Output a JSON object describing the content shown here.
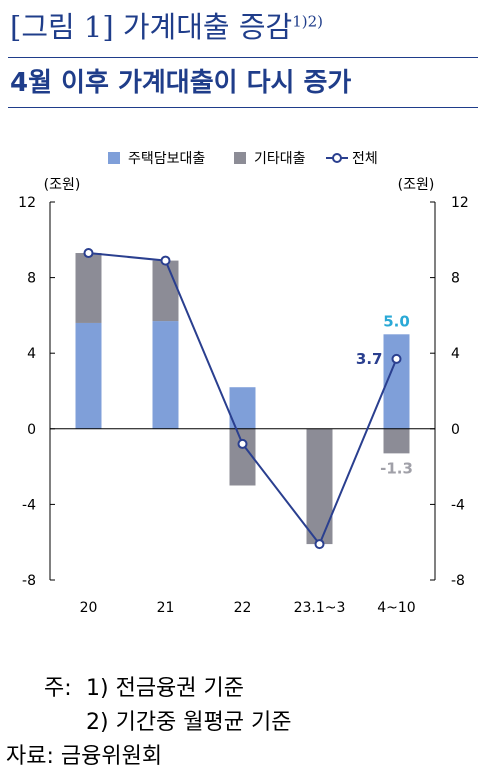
{
  "header": {
    "figure_title": "[그림 1] 가계대출 증감",
    "figure_title_sup": "1)2)",
    "subtitle": "4월 이후 가계대출이 다시 증가"
  },
  "chart_data": {
    "type": "bar",
    "categories": [
      "20",
      "21",
      "22",
      "23.1~3",
      "4~10"
    ],
    "series": [
      {
        "name": "주택담보대출",
        "kind": "bar",
        "stack": "s",
        "color": "#7f9fd9",
        "values": [
          5.6,
          5.7,
          2.2,
          0.0,
          5.0
        ]
      },
      {
        "name": "기타대출",
        "kind": "bar",
        "stack": "s",
        "color": "#8c8c96",
        "values": [
          3.7,
          3.2,
          -3.0,
          -6.1,
          -1.3
        ]
      },
      {
        "name": "전체",
        "kind": "line",
        "color": "#2a3f8f",
        "values": [
          9.3,
          8.9,
          -0.8,
          -6.1,
          3.7
        ]
      }
    ],
    "ylim": [
      -8,
      12
    ],
    "yticks": [
      -8,
      -4,
      0,
      4,
      8,
      12
    ],
    "y_unit_left": "(조원)",
    "y_unit_right": "(조원)",
    "legend_position": "top",
    "data_labels": [
      {
        "text": "5.0",
        "category_index": 4,
        "value": 5.0,
        "color": "#2aa9d6",
        "anchor": "above-bar"
      },
      {
        "text": "-1.3",
        "category_index": 4,
        "value": -1.3,
        "color": "#a0a0a8",
        "anchor": "below-bar"
      },
      {
        "text": "3.7",
        "category_index": 4,
        "value": 3.7,
        "color": "#2a3f8f",
        "anchor": "left-of-point"
      }
    ]
  },
  "notes": {
    "prefix": "주:",
    "item1": "1) 전금융권 기준",
    "item2": "2) 기간중 월평균 기준",
    "source": "자료: 금융위원회"
  }
}
